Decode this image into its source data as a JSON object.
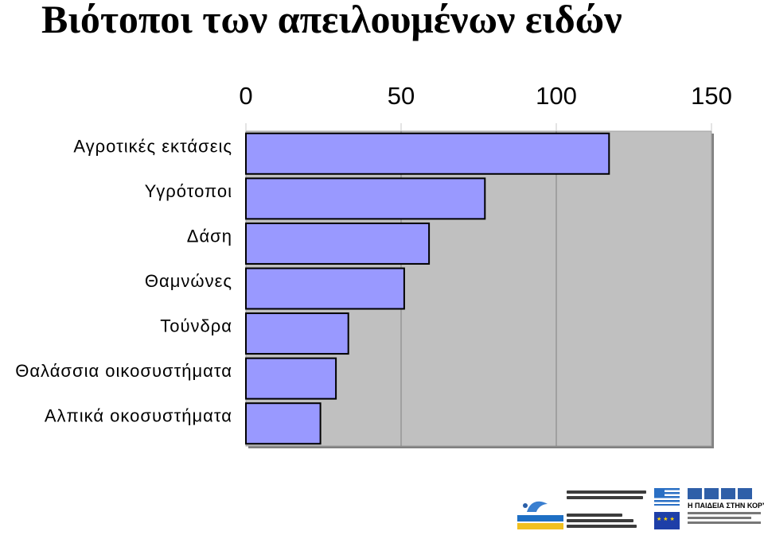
{
  "title": "Βιότοποι των απειλουμένων ειδών",
  "chart_data": {
    "type": "bar",
    "orientation": "horizontal",
    "categories": [
      "Αγροτικές εκτάσεις",
      "Υγρότοποι",
      "Δάση",
      "Θαμνώνες",
      "Τούνδρα",
      "Θαλάσσια οικοσυστήματα",
      "Αλπικά οκοσυστήματα"
    ],
    "values": [
      117,
      77,
      59,
      51,
      33,
      29,
      24
    ],
    "xlim": [
      0,
      150
    ],
    "xticks": [
      "0",
      "50",
      "100",
      "150"
    ],
    "x_axis_position": "top",
    "grid": true,
    "legend": "none",
    "title": "",
    "xlabel": "",
    "ylabel": "",
    "colors": {
      "bar_fill": "#9999ff",
      "bar_stroke": "#000000",
      "plot_background": "#c0c0c0",
      "gridline": "#808080"
    }
  },
  "logos": {
    "hellas_2008": "ΕΛΛΑΔΑ 2008",
    "epeaek": "Η ΠΑΙΔΕΙΑ ΣΤΗΝ ΚΟΡΥΦΗ"
  }
}
